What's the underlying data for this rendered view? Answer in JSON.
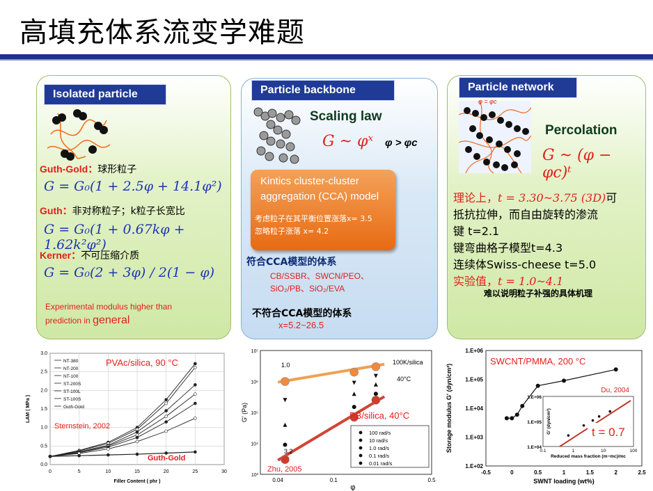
{
  "title": "高填充体系流变学难题",
  "isolated": {
    "tag": "Isolated particle",
    "guth_gold_name": "Guth-Gold：",
    "guth_gold_desc": "球形粒子",
    "eq1": "G = G₀(1 + 2.5φ + 14.1φ²)",
    "guth_name": "Guth：",
    "guth_desc": "非对称粒子；k粒子长宽比",
    "eq2": "G = G₀(1 + 0.67kφ + 1.62k²φ²)",
    "kerner_name": "Kerner：",
    "kerner_desc": "不可压缩介质",
    "eq3": "G = G₀(2 + 3φ) / 2(1 − φ)",
    "note_1": "Experimental modulus higher than",
    "note_2": "prediction in",
    "note_3": "general"
  },
  "backbone": {
    "tag": "Particle backbone",
    "scaling": "Scaling law",
    "eq": "G ~ φˣ",
    "cond": "φ > φc",
    "cca_1": "Kintics cluster-cluster",
    "cca_2": "aggregation (CCA) model",
    "cca_3": "考虑粒子在其平衡位置涨落x= 3.5",
    "cca_4": "忽略粒子涨落  x= 4.2",
    "fit_title": "符合CCA模型的体系",
    "fit_1": "CB/SSBR、SWCN/PEO、",
    "fit_2": "SiO₂/PB、SiO₂/EVA",
    "nofit_title": "不符合CCA模型的体系",
    "nofit_1": "x=5.2~26.5"
  },
  "network": {
    "tag": "Particle network",
    "phi_label": "φ = φc",
    "percolation": "Percolation",
    "eq": "G ~ (φ − φc)ᵗ",
    "line1a": "理论上，",
    "line1b": "t = 3.30~3.75  (3D)",
    "line1c": "可",
    "line2": "抵抗拉伸，而自由旋转的渗流",
    "line3": "键      t=2.1",
    "line4": "键弯曲格子模型t=4.3",
    "line5": "连续体Swiss-cheese  t=5.0",
    "line6a": "实验值，",
    "line6b": "t = 1.0~4.1",
    "line7": "难以说明粒子补强的具体机理"
  },
  "chart_data": [
    {
      "type": "line",
      "annotation": "PVAc/silica, 90 °C",
      "source": "Sternstein, 2002",
      "curve_label": "Guth-Gold",
      "xlabel": "Filler Content ( phr )",
      "ylabel": "LAM ( MPa )",
      "xlim": [
        0,
        30
      ],
      "ylim": [
        0,
        3.0
      ],
      "x_ticks": [
        "0",
        "5",
        "10",
        "15",
        "20",
        "25",
        "30"
      ],
      "y_ticks": [
        "0.0",
        "0.5",
        "1.0",
        "1.5",
        "2.0",
        "2.5",
        "3.0"
      ],
      "legend": [
        "NT-380",
        "NT-200",
        "NT-100",
        "ST-200S",
        "ST-100L",
        "ST-100S",
        "Guth-Gold"
      ],
      "x": [
        0,
        5,
        10,
        15,
        20,
        25
      ],
      "series": [
        {
          "name": "NT-380",
          "values": [
            0.22,
            0.38,
            0.6,
            1.0,
            1.75,
            2.72
          ]
        },
        {
          "name": "NT-200",
          "values": [
            0.22,
            0.37,
            0.57,
            0.95,
            1.65,
            2.62
          ]
        },
        {
          "name": "NT-100",
          "values": [
            0.22,
            0.35,
            0.52,
            0.88,
            1.45,
            2.15
          ]
        },
        {
          "name": "ST-200S",
          "values": [
            0.22,
            0.33,
            0.5,
            0.8,
            1.3,
            1.9
          ]
        },
        {
          "name": "ST-100L",
          "values": [
            0.22,
            0.32,
            0.47,
            0.73,
            1.15,
            1.65
          ]
        },
        {
          "name": "ST-100S",
          "values": [
            0.22,
            0.3,
            0.42,
            0.62,
            0.9,
            1.25
          ]
        },
        {
          "name": "Guth-Gold",
          "values": [
            0.22,
            0.24,
            0.26,
            0.28,
            0.31,
            0.34
          ]
        }
      ]
    },
    {
      "type": "scatter",
      "annotation": "PB/silica, 40°C",
      "source": "Zhu, 2005",
      "label_top": "100K/silica",
      "label_temp": "40°C",
      "slope_top": "1.0",
      "slope_bottom": "3.2",
      "xlabel": "φ",
      "ylabel": "G' (Pa)",
      "xscale": "log",
      "yscale": "log",
      "xlim": [
        0.03,
        0.5
      ],
      "ylim": [
        1000,
        10000000
      ],
      "x_ticks": [
        "0.04",
        "0.1",
        "0.5"
      ],
      "y_ticks": [
        "10³",
        "10⁴",
        "10⁵",
        "10⁶",
        "10⁷"
      ],
      "legend": [
        "100 rad/s",
        "10 rad/s",
        "1.0 rad/s",
        "0.1 rad/s",
        "0.01 rad/s"
      ],
      "x": [
        0.045,
        0.14,
        0.2
      ],
      "series": [
        {
          "name": "100 rad/s",
          "values": [
            1000000,
            2000000,
            3000000
          ]
        },
        {
          "name": "10 rad/s",
          "values": [
            250000,
            900000,
            1500000
          ]
        },
        {
          "name": "1.0 rad/s",
          "values": [
            40000,
            400000,
            800000
          ]
        },
        {
          "name": "0.1 rad/s",
          "values": [
            9000,
            150000,
            400000
          ]
        },
        {
          "name": "0.01 rad/s",
          "values": [
            3000,
            70000,
            250000
          ]
        }
      ]
    },
    {
      "type": "line",
      "annotation": "SWCNT/PMMA, 200 °C",
      "source": "Du, 2004",
      "slope": "t = 0.7",
      "xlabel": "SWNT loading (wt%)",
      "ylabel": "Storage modulus G' (dyn/cm²)",
      "yscale": "log",
      "xlim": [
        -0.5,
        2.5
      ],
      "ylim": [
        100,
        1000000
      ],
      "x_ticks": [
        "-0.5",
        "0",
        "0.5",
        "1",
        "1.5",
        "2",
        "2.5"
      ],
      "y_ticks": [
        "1.E+02",
        "1.E+03",
        "1.E+04",
        "1.E+05",
        "1.E+06"
      ],
      "x": [
        -0.1,
        0.0,
        0.1,
        0.2,
        0.5,
        1.0,
        2.0
      ],
      "values": [
        4500,
        4500,
        6000,
        12000,
        60000,
        90000,
        220000
      ],
      "inset": {
        "xlabel": "Reduced mass fraction (m−mc)/mc",
        "ylabel": "G' (dyn/cm²)",
        "x_ticks": [
          "0.1",
          "1",
          "10",
          "100"
        ],
        "y_ticks": [
          "1.E+04",
          "1.E+05",
          "1.E+06"
        ]
      }
    }
  ],
  "colors": {
    "tag_bg": "#1f3b96",
    "accent_red": "#e0201b",
    "eq_blue": "#1f34b4",
    "orange": "#e8791f"
  }
}
